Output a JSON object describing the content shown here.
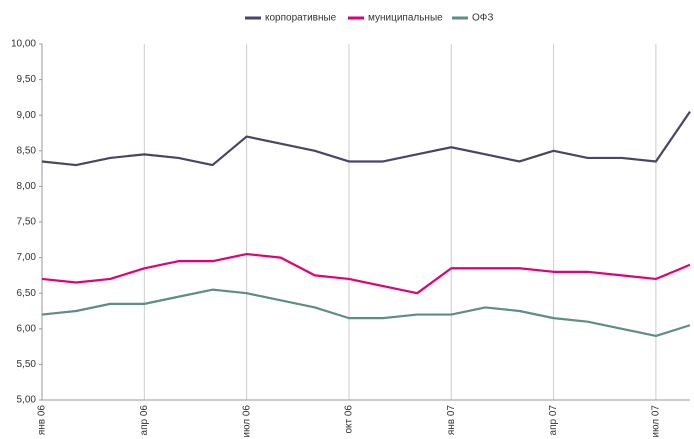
{
  "chart_data": {
    "type": "line",
    "x": [
      "2006-01",
      "2006-02",
      "2006-03",
      "2006-04",
      "2006-05",
      "2006-06",
      "2006-07",
      "2006-08",
      "2006-09",
      "2006-10",
      "2006-11",
      "2006-12",
      "2007-01",
      "2007-02",
      "2007-03",
      "2007-04",
      "2007-05",
      "2007-06",
      "2007-07",
      "2007-08"
    ],
    "series": [
      {
        "name": "корпоративные",
        "color": "#4a4566",
        "values": [
          8.35,
          8.3,
          8.4,
          8.45,
          8.4,
          8.3,
          8.7,
          8.6,
          8.5,
          8.35,
          8.35,
          8.45,
          8.55,
          8.45,
          8.35,
          8.5,
          8.4,
          8.4,
          8.35,
          9.05
        ]
      },
      {
        "name": "муниципальные",
        "color": "#e0007a",
        "values": [
          6.7,
          6.65,
          6.7,
          6.85,
          6.95,
          6.95,
          7.05,
          7.0,
          6.75,
          6.7,
          6.6,
          6.5,
          6.85,
          6.85,
          6.85,
          6.8,
          6.8,
          6.75,
          6.7,
          6.9
        ]
      },
      {
        "name": "ОФЗ",
        "color": "#5e8e86",
        "values": [
          6.2,
          6.25,
          6.35,
          6.35,
          6.45,
          6.55,
          6.5,
          6.4,
          6.3,
          6.15,
          6.15,
          6.2,
          6.2,
          6.3,
          6.25,
          6.15,
          6.1,
          6.0,
          5.9,
          6.05
        ]
      }
    ],
    "xlim": [
      "2006-01",
      "2007-08"
    ],
    "xticks": [
      {
        "value": "2006-01",
        "label": "янв 06"
      },
      {
        "value": "2006-04",
        "label": "апр 06"
      },
      {
        "value": "2006-07",
        "label": "июл 06"
      },
      {
        "value": "2006-10",
        "label": "окт 06"
      },
      {
        "value": "2007-01",
        "label": "янв 07"
      },
      {
        "value": "2007-04",
        "label": "апр 07"
      },
      {
        "value": "2007-07",
        "label": "июл 07"
      }
    ],
    "ylim": [
      5,
      10
    ],
    "yticks": [
      {
        "value": 5,
        "label": "5,00"
      },
      {
        "value": 5.5,
        "label": "5,50"
      },
      {
        "value": 6,
        "label": "6,00"
      },
      {
        "value": 6.5,
        "label": "6,50"
      },
      {
        "value": 7,
        "label": "7,00"
      },
      {
        "value": 7.5,
        "label": "7,50"
      },
      {
        "value": 8,
        "label": "8,00"
      },
      {
        "value": 8.5,
        "label": "8,50"
      },
      {
        "value": 9,
        "label": "9,00"
      },
      {
        "value": 9.5,
        "label": "9,50"
      },
      {
        "value": 10,
        "label": "10,00"
      }
    ],
    "grid": true,
    "legend": "top"
  }
}
